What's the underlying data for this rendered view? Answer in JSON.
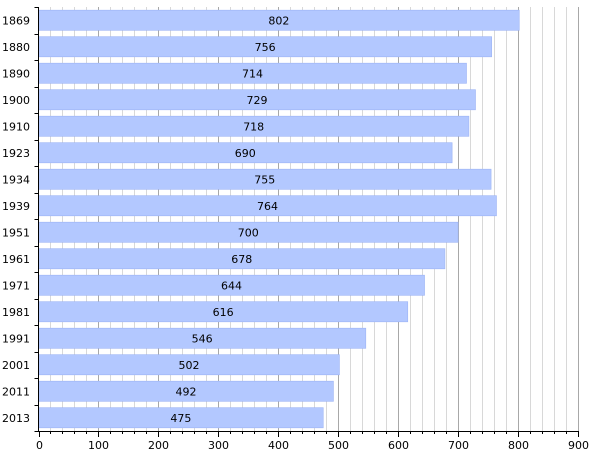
{
  "chart_data": {
    "type": "bar",
    "orientation": "horizontal",
    "categories": [
      "1869",
      "1880",
      "1890",
      "1900",
      "1910",
      "1923",
      "1934",
      "1939",
      "1951",
      "1961",
      "1971",
      "1981",
      "1991",
      "2001",
      "2011",
      "2013"
    ],
    "values": [
      802,
      756,
      714,
      729,
      718,
      690,
      755,
      764,
      700,
      678,
      644,
      616,
      546,
      502,
      492,
      475
    ],
    "xlim": [
      0,
      900
    ],
    "x_ticks": [
      0,
      100,
      200,
      300,
      400,
      500,
      600,
      700,
      800,
      900
    ],
    "x_minor_step": 20,
    "grid": true,
    "bar_color": "#b3c8ff",
    "bar_edge_color": "#9db4f5",
    "grid_major_color": "#a8a8a8",
    "grid_minor_color": "#d8d8d8"
  }
}
